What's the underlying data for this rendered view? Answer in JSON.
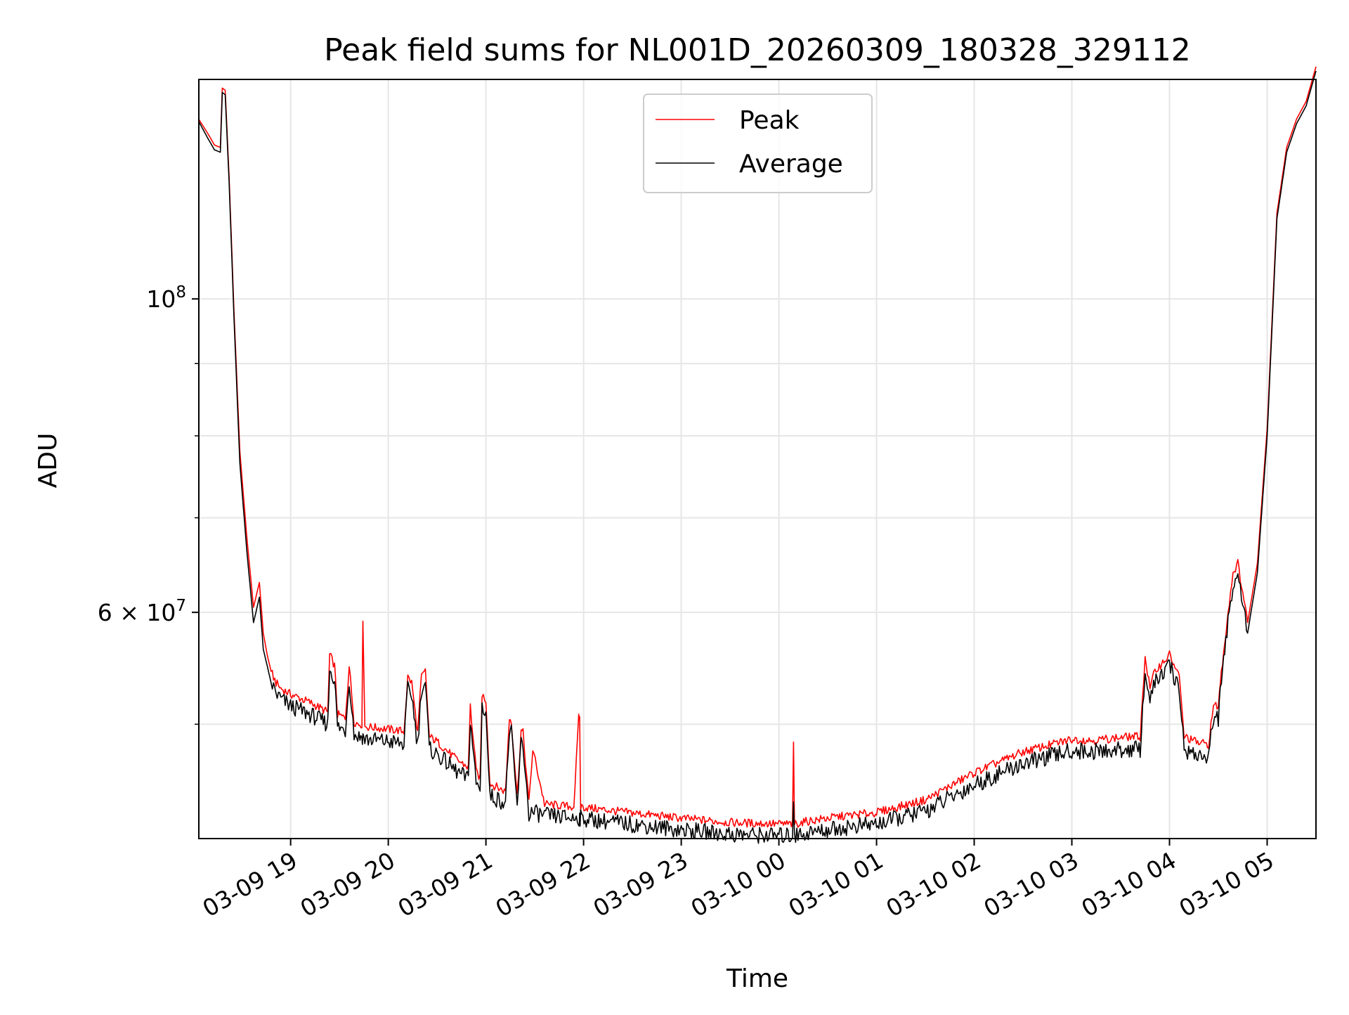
{
  "chart_data": {
    "type": "line",
    "title": "Peak field sums for NL001D_20260309_180328_329112",
    "xlabel": "Time",
    "ylabel": "ADU",
    "yscale": "log",
    "grid": true,
    "legend_position": "upper center",
    "x_unit": "hours since 2026-03-09 18:00",
    "xlim": [
      0.06,
      11.5
    ],
    "ylim": [
      41500000,
      143000000
    ],
    "x_ticks": [
      {
        "value": 1,
        "label": "03-09 19"
      },
      {
        "value": 2,
        "label": "03-09 20"
      },
      {
        "value": 3,
        "label": "03-09 21"
      },
      {
        "value": 4,
        "label": "03-09 22"
      },
      {
        "value": 5,
        "label": "03-09 23"
      },
      {
        "value": 6,
        "label": "03-10 00"
      },
      {
        "value": 7,
        "label": "03-10 01"
      },
      {
        "value": 8,
        "label": "03-10 02"
      },
      {
        "value": 9,
        "label": "03-10 03"
      },
      {
        "value": 10,
        "label": "03-10 04"
      },
      {
        "value": 11,
        "label": "03-10 05"
      }
    ],
    "y_major_ticks": [
      {
        "value": 100000000,
        "base": "10",
        "exp": "8"
      },
      {
        "value": 60000000,
        "mantissa": "6",
        "base": "10",
        "exp": "7"
      }
    ],
    "y_minor_ticks": [
      50000000,
      70000000,
      80000000,
      90000000
    ],
    "series": [
      {
        "name": "Peak",
        "color": "#ff0000",
        "x": [
          0.06,
          0.15,
          0.22,
          0.28,
          0.3,
          0.33,
          0.37,
          0.42,
          0.48,
          0.55,
          0.62,
          0.68,
          0.72,
          0.76,
          0.8,
          0.85,
          0.9,
          1.0,
          1.2,
          1.38,
          1.4,
          1.45,
          1.48,
          1.56,
          1.6,
          1.65,
          1.7,
          1.73,
          1.74,
          1.76,
          1.9,
          2.1,
          2.16,
          2.2,
          2.24,
          2.3,
          2.34,
          2.38,
          2.42,
          2.5,
          2.7,
          2.82,
          2.84,
          2.9,
          2.94,
          2.96,
          3.0,
          3.04,
          3.2,
          3.24,
          3.26,
          3.32,
          3.36,
          3.38,
          3.44,
          3.48,
          3.6,
          3.9,
          3.95,
          3.96,
          3.97,
          4.2,
          4.6,
          5.0,
          5.5,
          6.0,
          6.14,
          6.15,
          6.16,
          6.3,
          6.6,
          7.0,
          7.5,
          8.0,
          8.5,
          9.0,
          9.2,
          9.6,
          9.7,
          9.75,
          9.8,
          9.85,
          10.0,
          10.1,
          10.15,
          10.3,
          10.4,
          10.45,
          10.5,
          10.52,
          10.6,
          10.65,
          10.7,
          10.75,
          10.8,
          10.9,
          11.0,
          11.1,
          11.14,
          11.2,
          11.3,
          11.4,
          11.5
        ],
        "values": [
          134000000,
          131000000,
          128500000,
          128000000,
          141000000,
          140500000,
          122000000,
          98000000,
          78000000,
          68000000,
          60500000,
          63000000,
          58000000,
          56000000,
          54500000,
          53500000,
          53000000,
          52500000,
          51800000,
          51000000,
          56000000,
          55000000,
          50800000,
          50500000,
          55000000,
          50200000,
          50000000,
          50000000,
          59500000,
          49800000,
          49700000,
          49500000,
          49400000,
          54000000,
          53500000,
          49300000,
          54000000,
          54500000,
          49000000,
          48600000,
          47200000,
          46600000,
          51500000,
          46300000,
          45800000,
          52500000,
          52000000,
          45400000,
          44800000,
          50500000,
          50300000,
          44500000,
          49500000,
          49300000,
          44000000,
          48000000,
          43900000,
          43700000,
          50500000,
          50500000,
          43700000,
          43500000,
          43200000,
          42900000,
          42600000,
          42500000,
          42500000,
          48500000,
          42500000,
          42700000,
          43000000,
          43300000,
          44200000,
          46200000,
          47800000,
          48800000,
          48700000,
          49000000,
          49000000,
          55800000,
          53000000,
          54500000,
          56000000,
          54000000,
          49000000,
          48500000,
          48400000,
          51500000,
          51500000,
          53500000,
          60000000,
          64000000,
          65000000,
          62000000,
          59000000,
          65000000,
          81000000,
          115000000,
          120000000,
          128000000,
          134000000,
          138000000,
          146000000
        ]
      },
      {
        "name": "Average",
        "color": "#000000",
        "x": [
          0.06,
          0.15,
          0.22,
          0.28,
          0.3,
          0.33,
          0.37,
          0.42,
          0.48,
          0.55,
          0.62,
          0.68,
          0.72,
          0.76,
          0.8,
          0.85,
          0.9,
          1.0,
          1.2,
          1.38,
          1.4,
          1.45,
          1.48,
          1.56,
          1.6,
          1.65,
          1.7,
          1.73,
          1.74,
          1.76,
          1.9,
          2.1,
          2.16,
          2.2,
          2.24,
          2.3,
          2.34,
          2.38,
          2.42,
          2.5,
          2.7,
          2.82,
          2.84,
          2.9,
          2.94,
          2.96,
          3.0,
          3.04,
          3.2,
          3.24,
          3.26,
          3.32,
          3.36,
          3.38,
          3.44,
          3.48,
          3.6,
          3.9,
          3.95,
          3.96,
          3.97,
          4.2,
          4.6,
          5.0,
          5.5,
          6.0,
          6.14,
          6.15,
          6.16,
          6.3,
          6.6,
          7.0,
          7.5,
          8.0,
          8.5,
          9.0,
          9.2,
          9.6,
          9.7,
          9.75,
          9.8,
          9.85,
          10.0,
          10.1,
          10.15,
          10.3,
          10.4,
          10.45,
          10.5,
          10.52,
          10.6,
          10.65,
          10.7,
          10.75,
          10.8,
          10.9,
          11.0,
          11.1,
          11.14,
          11.2,
          11.3,
          11.4,
          11.5
        ],
        "values": [
          133500000,
          130000000,
          127500000,
          127000000,
          140000000,
          139500000,
          121000000,
          97000000,
          76500000,
          66500000,
          59000000,
          61500000,
          56500000,
          55000000,
          53500000,
          52600000,
          52100000,
          51500000,
          50800000,
          50000000,
          54800000,
          53800000,
          49800000,
          49500000,
          53800000,
          49200000,
          49000000,
          49000000,
          49000000,
          48800000,
          48700000,
          48500000,
          48400000,
          53000000,
          52500000,
          48300000,
          53000000,
          53500000,
          48000000,
          47600000,
          46300000,
          45700000,
          50500000,
          45400000,
          44900000,
          51500000,
          51000000,
          44500000,
          44000000,
          49500000,
          49300000,
          43700000,
          48500000,
          48300000,
          43200000,
          43300000,
          43100000,
          42900000,
          42900000,
          42900000,
          42900000,
          42700000,
          42400000,
          42100000,
          41800000,
          41700000,
          41700000,
          44500000,
          41700000,
          41900000,
          42200000,
          42500000,
          43400000,
          45300000,
          46900000,
          47900000,
          47800000,
          48000000,
          48000000,
          54500000,
          52000000,
          53500000,
          55000000,
          53000000,
          48000000,
          47500000,
          47400000,
          50500000,
          50500000,
          52500000,
          59000000,
          63000000,
          64000000,
          61000000,
          58000000,
          64000000,
          80000000,
          114000000,
          119000000,
          127000000,
          133000000,
          137000000,
          145000000
        ]
      }
    ]
  }
}
